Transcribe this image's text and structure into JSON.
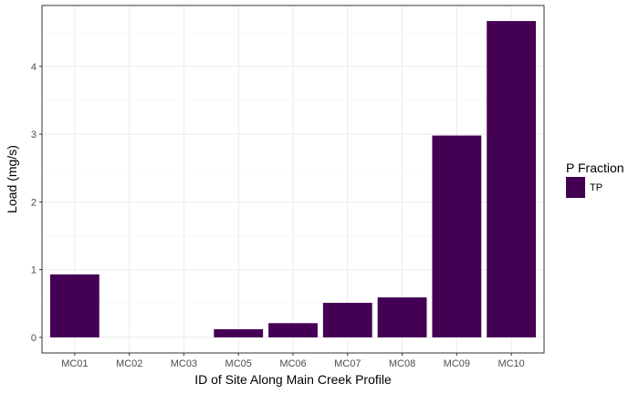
{
  "chart_data": {
    "type": "bar",
    "categories": [
      "MC01",
      "MC02",
      "MC03",
      "MC05",
      "MC06",
      "MC07",
      "MC08",
      "MC09",
      "MC10"
    ],
    "series": [
      {
        "name": "TP",
        "values": [
          0.93,
          0,
          0,
          0.12,
          0.21,
          0.51,
          0.59,
          2.98,
          4.67
        ],
        "color": "#440154"
      }
    ],
    "xlabel": "ID of Site Along Main Creek Profile",
    "ylabel": "Load (mg/s)",
    "yticks": [
      "0",
      "1",
      "2",
      "3",
      "4"
    ],
    "ylim": [
      -0.23,
      4.9
    ],
    "grid": true,
    "legend": {
      "title": "P Fraction",
      "position": "right"
    }
  }
}
